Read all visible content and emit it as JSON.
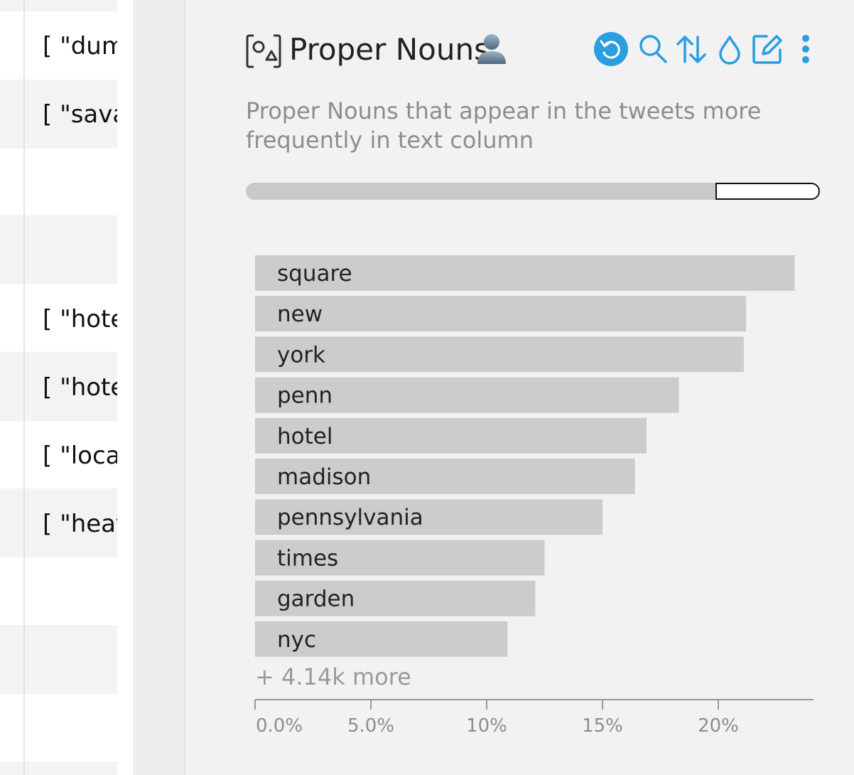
{
  "left_column": {
    "cells": [
      {
        "text": "[ \"dump"
      },
      {
        "text": "[ \"savag"
      },
      {
        "text": "[ \"hotel"
      },
      {
        "text": "[ \"hotel"
      },
      {
        "text": "[ \"locati"
      },
      {
        "text": "[ \"heate"
      }
    ]
  },
  "panel": {
    "title": "Proper Nouns",
    "description": "Proper Nouns that appear in the tweets more frequently in text column",
    "more_label": "+ 4.14k more",
    "icons": {
      "header": "entity-shapes-icon",
      "person": "person-icon",
      "toolbar": [
        "reset-icon",
        "search-icon",
        "sort-icon",
        "color-drop-icon",
        "edit-icon",
        "more-vertical-icon"
      ]
    },
    "accent_color": "#2b9de0",
    "scroll_position": {
      "visible_fraction_start": 0.818,
      "visible_fraction_end": 1.0
    }
  },
  "chart_data": {
    "type": "bar",
    "orientation": "horizontal",
    "categories": [
      "square",
      "new",
      "york",
      "penn",
      "hotel",
      "madison",
      "pennsylvania",
      "times",
      "garden",
      "nyc"
    ],
    "values": [
      23.3,
      21.2,
      21.1,
      18.3,
      16.9,
      16.4,
      15.0,
      12.5,
      12.1,
      10.9
    ],
    "x_ticks": [
      "0.0%",
      "5.0%",
      "10%",
      "15%",
      "20%"
    ],
    "tick_values": [
      0,
      5,
      10,
      15,
      20
    ],
    "xlim": [
      0,
      24
    ],
    "grid": false,
    "bar_color": "#cccccc"
  }
}
